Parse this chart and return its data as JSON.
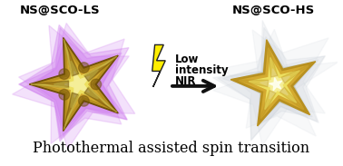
{
  "title": "Photothermal assisted spin transition",
  "label_left": "NS@SCO-LS",
  "label_right": "NS@SCO-HS",
  "label_mid_lines": [
    "Low",
    "intensity",
    "NIR"
  ],
  "bg_color": "#ffffff",
  "title_fontsize": 11.5,
  "label_fontsize": 9.5,
  "mid_fontsize": 8.5,
  "purple_shell": "#cc77ee",
  "purple_dark": "#550055",
  "gray_shell": "#c8cfd8",
  "gold_base": "#b89020",
  "gold_mid": "#d4aa30",
  "gold_light": "#ede060",
  "gold_highlight": "#f5ee98",
  "gold_dark": "#705008",
  "arrow_color": "#111111",
  "lightning_yellow": "#ffee00",
  "lightning_outline": "#222222"
}
